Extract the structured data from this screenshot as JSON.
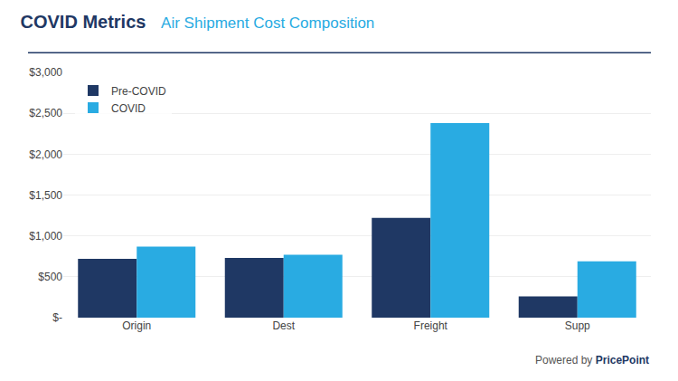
{
  "chart_data": {
    "type": "bar",
    "title": "COVID Metrics",
    "subtitle": "Air Shipment Cost Composition",
    "categories": [
      "Origin",
      "Dest",
      "Freight",
      "Supp"
    ],
    "series": [
      {
        "name": "Pre-COVID",
        "color": "#1F3864",
        "values": [
          720,
          730,
          1220,
          260
        ]
      },
      {
        "name": "COVID",
        "color": "#29ABE2",
        "values": [
          870,
          770,
          2380,
          690
        ]
      }
    ],
    "ylim": [
      0,
      3000
    ],
    "yticks": [
      {
        "value": 0,
        "label": "$-"
      },
      {
        "value": 500,
        "label": "$500"
      },
      {
        "value": 1000,
        "label": "$1,000"
      },
      {
        "value": 1500,
        "label": "$1,500"
      },
      {
        "value": 2000,
        "label": "$2,000"
      },
      {
        "value": 2500,
        "label": "$2,500"
      },
      {
        "value": 3000,
        "label": "$3,000"
      }
    ],
    "grid": true,
    "legend": "upper left",
    "annotations": [
      "Powered by",
      "PricePoint"
    ]
  }
}
